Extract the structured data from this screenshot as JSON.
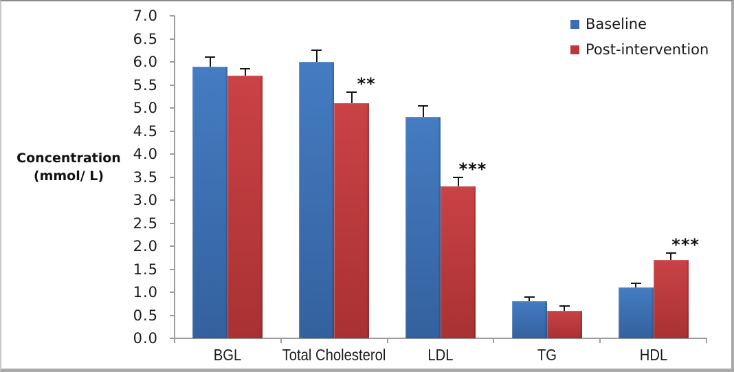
{
  "chart_data": {
    "type": "bar",
    "title": "",
    "xlabel": "",
    "ylabel": "Concentration (mmol/ L)",
    "ylabel_lines": [
      "Concentration",
      "(mmol/ L)"
    ],
    "categories": [
      "BGL",
      "Total Cholesterol",
      "LDL",
      "TG",
      "HDL"
    ],
    "series": [
      {
        "name": "Baseline",
        "color": "#3a6fb8",
        "gradient": [
          "#447cc2",
          "#34619e"
        ],
        "values": [
          5.9,
          6.0,
          4.8,
          0.8,
          1.1
        ],
        "errors": [
          0.2,
          0.25,
          0.25,
          0.1,
          0.1
        ]
      },
      {
        "name": "Post-intervention",
        "color": "#be383a",
        "gradient": [
          "#ca4245",
          "#a93133"
        ],
        "values": [
          5.7,
          5.1,
          3.3,
          0.6,
          1.7
        ],
        "errors": [
          0.15,
          0.25,
          0.2,
          0.1,
          0.15
        ]
      }
    ],
    "significance": [
      {
        "category": "Total Cholesterol",
        "series": "Post-intervention",
        "label": "**"
      },
      {
        "category": "LDL",
        "series": "Post-intervention",
        "label": "***"
      },
      {
        "category": "HDL",
        "series": "Post-intervention",
        "label": "***"
      }
    ],
    "ylim": [
      0,
      7
    ],
    "ytick_step": 0.5,
    "yticks": [
      "0.0",
      "0.5",
      "1.0",
      "1.5",
      "2.0",
      "2.5",
      "3.0",
      "3.5",
      "4.0",
      "4.5",
      "5.0",
      "5.5",
      "6.0",
      "6.5",
      "7.0"
    ],
    "grid": false,
    "legend_position": "top-right",
    "error_bars": "plus-direction-with-caps",
    "axis_color": "#9c9c9c",
    "error_bar_color": "#161616",
    "significance_color": "#111111"
  }
}
